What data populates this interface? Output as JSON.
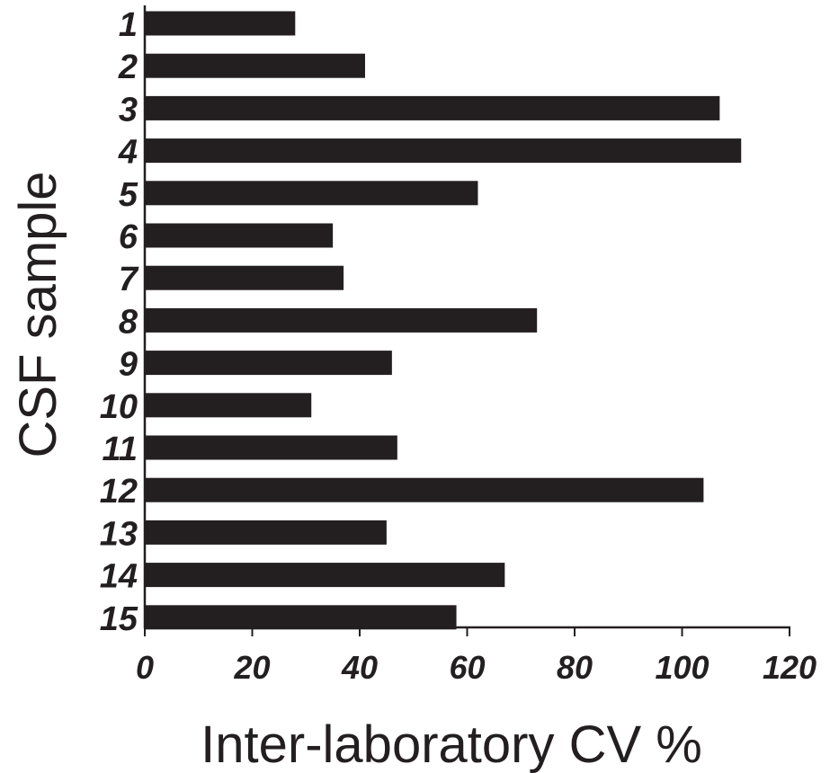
{
  "chart_data": {
    "type": "bar",
    "orientation": "horizontal",
    "categories": [
      "1",
      "2",
      "3",
      "4",
      "5",
      "6",
      "7",
      "8",
      "9",
      "10",
      "11",
      "12",
      "13",
      "14",
      "15"
    ],
    "values": [
      28,
      41,
      107,
      111,
      62,
      35,
      37,
      73,
      46,
      31,
      47,
      104,
      45,
      67,
      58
    ],
    "xlabel": "Inter-laboratory CV %",
    "ylabel": "CSF sample",
    "xlim": [
      0,
      120
    ],
    "xticks": [
      0,
      20,
      40,
      60,
      80,
      100,
      120
    ],
    "grid": false,
    "colors": {
      "bar": "#231f20",
      "axis": "#231f20",
      "text": "#231f20"
    }
  }
}
